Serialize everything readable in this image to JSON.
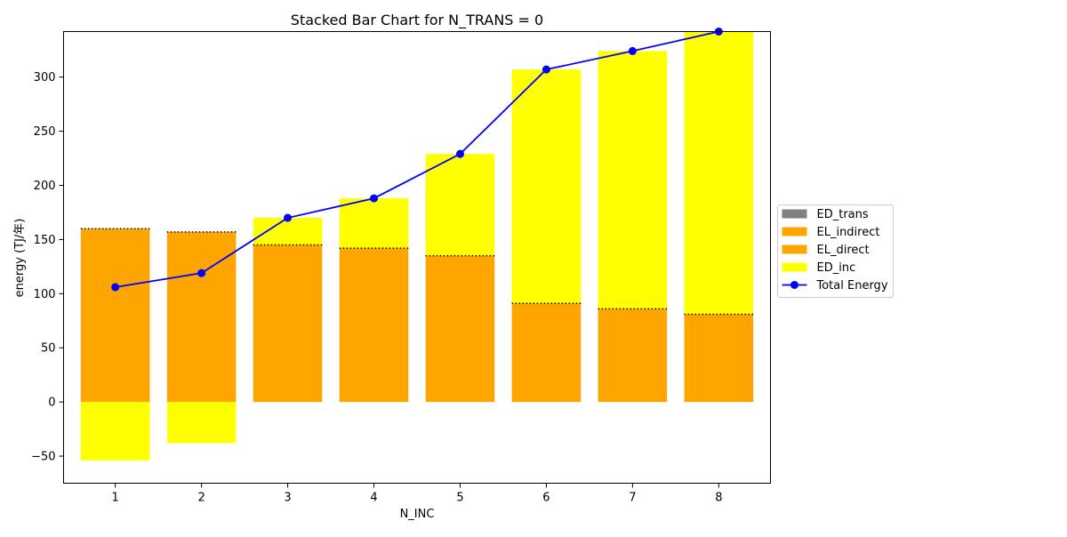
{
  "chart_data": {
    "type": "bar",
    "title": "Stacked Bar Chart for N_TRANS = 0",
    "xlabel": "N_INC",
    "ylabel": "energy (TJ/年)",
    "categories": [
      "1",
      "2",
      "3",
      "4",
      "5",
      "6",
      "7",
      "8"
    ],
    "ylim": [
      -75,
      342
    ],
    "yticks": [
      -50,
      0,
      50,
      100,
      150,
      200,
      250,
      300
    ],
    "grid": false,
    "legend_position": "right",
    "stacked": true,
    "series": [
      {
        "name": "ED_trans",
        "kind": "bar",
        "color": "#808080",
        "values": [
          0,
          0,
          0,
          0,
          0,
          0,
          0,
          0
        ]
      },
      {
        "name": "EL_indirect",
        "kind": "bar",
        "color": "#ffa500",
        "values": [
          0,
          0,
          0,
          0,
          0,
          0,
          0,
          0
        ]
      },
      {
        "name": "EL_direct",
        "kind": "bar",
        "color": "#ffa500",
        "values": [
          160,
          157,
          145,
          142,
          135,
          91,
          86,
          81
        ]
      },
      {
        "name": "ED_inc",
        "kind": "bar",
        "color": "#ffff00",
        "values": [
          -54,
          -38,
          25,
          46,
          94,
          216,
          238,
          261
        ]
      },
      {
        "name": "Total Energy",
        "kind": "line",
        "color": "#0000ff",
        "values": [
          106,
          119,
          170,
          188,
          229,
          307,
          324,
          342
        ]
      }
    ],
    "separator_style": "dotted",
    "separator_color": "#000000"
  }
}
